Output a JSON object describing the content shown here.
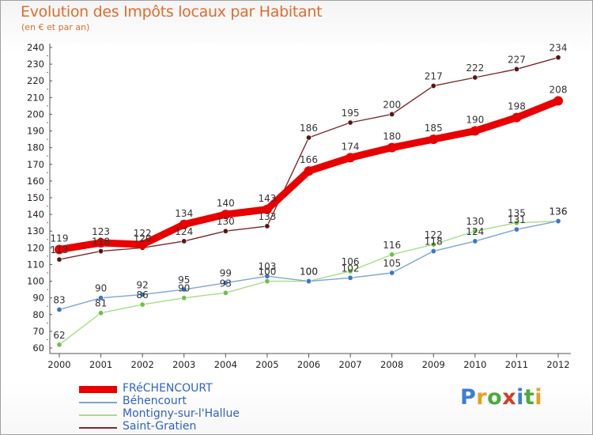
{
  "title": "Evolution des Impôts locaux par Habitant",
  "subtitle": "(en € et par an)",
  "logo_text": "Proxiti",
  "logo_colors": [
    "#3a7fd0",
    "#e8a020",
    "#4caa3c",
    "#d23c28",
    "#3a7fd0",
    "#4caa3c",
    "#e8a020"
  ],
  "chart_data": {
    "type": "line",
    "title": "Evolution des Impôts locaux par Habitant",
    "subtitle": "(en € et par an)",
    "xlabel": "",
    "ylabel": "",
    "x": [
      "2000",
      "2001",
      "2002",
      "2003",
      "2004",
      "2005",
      "2006",
      "2007",
      "2008",
      "2009",
      "2010",
      "2011",
      "2012"
    ],
    "ylim": [
      60,
      240
    ],
    "yticks": [
      60,
      70,
      80,
      90,
      100,
      110,
      120,
      130,
      140,
      150,
      160,
      170,
      180,
      190,
      200,
      210,
      220,
      230,
      240
    ],
    "grid": false,
    "legend_position": "bottom-left",
    "series": [
      {
        "name": "FRéCHENCOURT",
        "color": "#e80000",
        "emphasis": true,
        "values": [
          119,
          123,
          122,
          134,
          140,
          143,
          166,
          174,
          180,
          185,
          190,
          198,
          208
        ]
      },
      {
        "name": "Béhencourt",
        "color": "#7aa6d8",
        "marker": "#3a78c8",
        "values": [
          83,
          90,
          92,
          95,
          99,
          103,
          100,
          102,
          105,
          118,
          124,
          131,
          136
        ]
      },
      {
        "name": "Montigny-sur-l'Hallue",
        "color": "#a8dc88",
        "marker": "#6cc24a",
        "values": [
          62,
          81,
          86,
          90,
          93,
          100,
          100,
          106,
          116,
          122,
          130,
          135,
          136
        ]
      },
      {
        "name": "Saint-Gratien",
        "color": "#7a2a2a",
        "marker": "#5a1515",
        "values": [
          113,
          118,
          120,
          124,
          130,
          133,
          186,
          195,
          200,
          217,
          222,
          227,
          234
        ]
      }
    ]
  }
}
